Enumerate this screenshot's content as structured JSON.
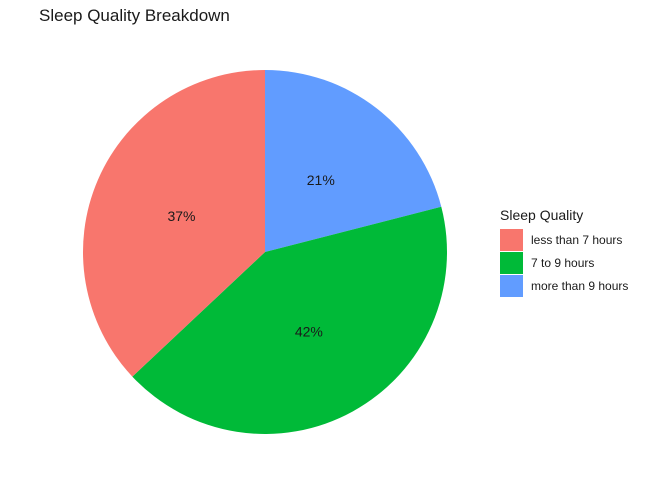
{
  "chart_data": {
    "type": "pie",
    "title": "Sleep Quality Breakdown",
    "legend_title": "Sleep Quality",
    "legend_position": "right",
    "categories": [
      "less than 7 hours",
      "7 to 9 hours",
      "more than 9 hours"
    ],
    "values": [
      37,
      42,
      21
    ],
    "labels": [
      "37%",
      "42%",
      "21%"
    ],
    "colors": [
      "#F8766D",
      "#00BA38",
      "#619CFF"
    ]
  }
}
